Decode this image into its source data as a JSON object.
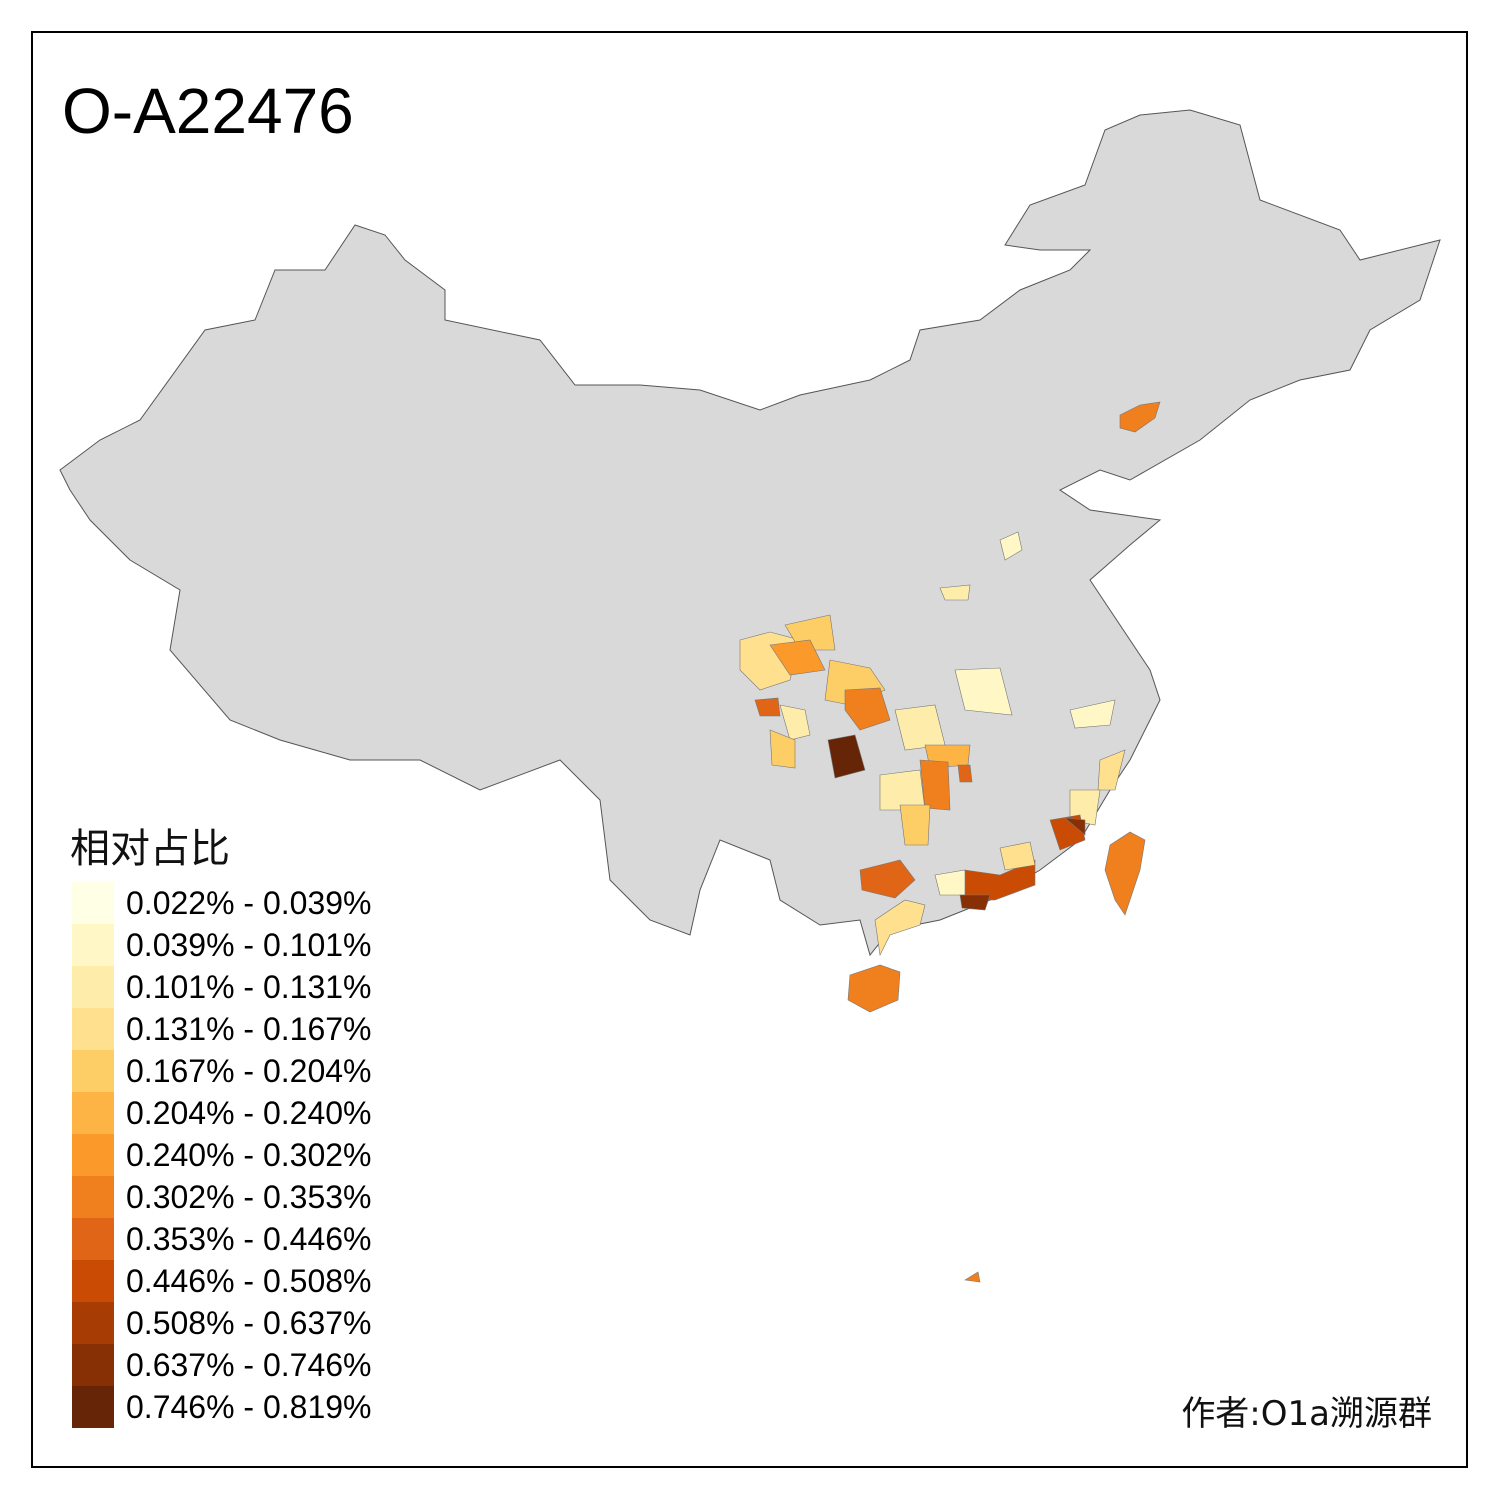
{
  "title": "O-A22476",
  "legend": {
    "title": "相对占比",
    "items": [
      {
        "label": "0.022% - 0.039%",
        "color": "#FFFFE5"
      },
      {
        "label": "0.039% - 0.101%",
        "color": "#FFF8C6"
      },
      {
        "label": "0.101% - 0.131%",
        "color": "#FEEDAA"
      },
      {
        "label": "0.131% - 0.167%",
        "color": "#FEE08E"
      },
      {
        "label": "0.167% - 0.204%",
        "color": "#FECE66"
      },
      {
        "label": "0.204% - 0.240%",
        "color": "#FDB444"
      },
      {
        "label": "0.240% - 0.302%",
        "color": "#FB9A2A"
      },
      {
        "label": "0.302% - 0.353%",
        "color": "#F07F1E"
      },
      {
        "label": "0.353% - 0.446%",
        "color": "#E06516"
      },
      {
        "label": "0.446% - 0.508%",
        "color": "#CA4C04"
      },
      {
        "label": "0.508% - 0.637%",
        "color": "#A83C05"
      },
      {
        "label": "0.637% - 0.746%",
        "color": "#873006"
      },
      {
        "label": "0.746% - 0.819%",
        "color": "#662506"
      }
    ]
  },
  "credit": "作者:O1a溯源群",
  "base_color": "#D9D9D9",
  "chart_data": {
    "type": "choropleth",
    "title": "O-A22476",
    "legend_title": "相对占比",
    "legend_placement": "bottom-left",
    "no_data_color": "#D9D9D9"
  }
}
